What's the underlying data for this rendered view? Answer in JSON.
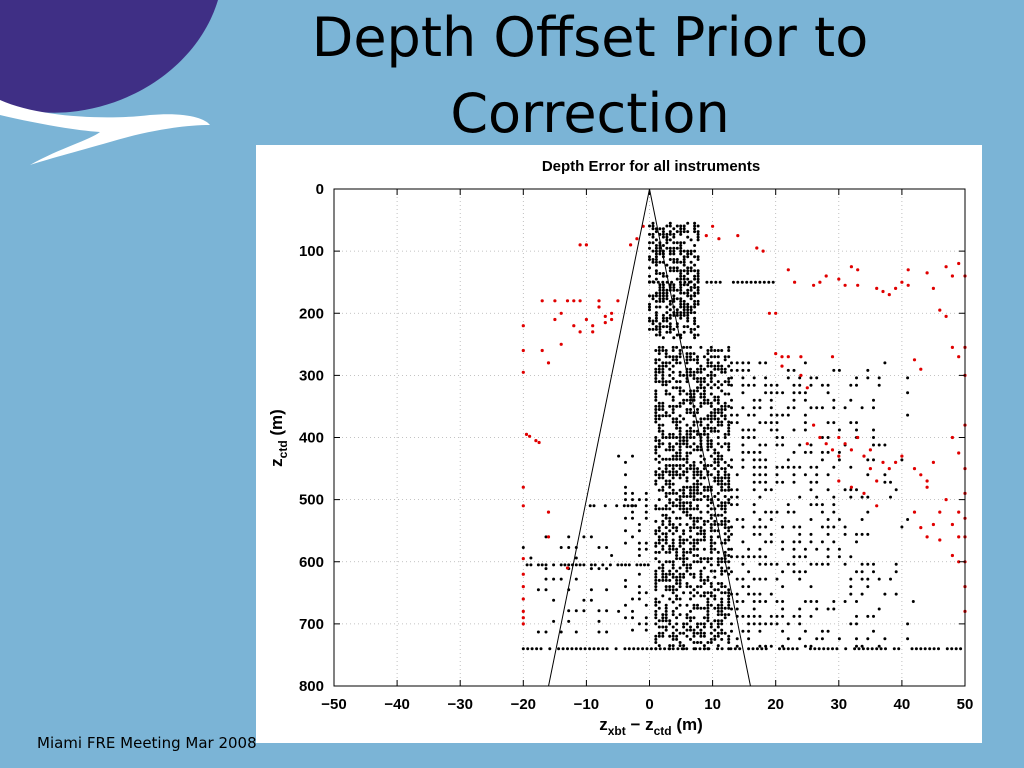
{
  "slide": {
    "title": "Depth Offset Prior to Correction",
    "footer": "Miami FRE Meeting Mar 2008"
  },
  "logo": {
    "name": "wave-logo",
    "colors": {
      "primary": "#3f2f85",
      "secondary": "#ffffff"
    }
  },
  "colors": {
    "background": "#7bb4d6",
    "inlier": "#000000",
    "outlier": "#e00000"
  },
  "chart_data": {
    "type": "scatter",
    "title": "Depth Error for all instruments",
    "xlabel": {
      "main": "z",
      "sub1": "xbt",
      "minus": " − z",
      "sub2": "ctd",
      "unit": " (m)"
    },
    "ylabel": {
      "main": "z",
      "sub": "ctd",
      "unit": " (m)"
    },
    "xlim": [
      -50,
      50
    ],
    "ylim": [
      800,
      0
    ],
    "xticks": [
      "−50",
      "−40",
      "−30",
      "−20",
      "−10",
      "0",
      "10",
      "20",
      "30",
      "40",
      "50"
    ],
    "yticks": [
      "0",
      "100",
      "200",
      "300",
      "400",
      "500",
      "600",
      "700",
      "800"
    ],
    "grid": "dotted",
    "envelope": {
      "apex": [
        0,
        0
      ],
      "bottom_left": [
        -16,
        800
      ],
      "bottom_right": [
        16,
        800
      ]
    },
    "series": [
      {
        "color": "#000000",
        "description": "within tolerance envelope",
        "bands": [
          {
            "y": [
              55,
              240
            ],
            "x": [
              0,
              8
            ],
            "step_x": 0.55,
            "step_y": 4.5
          },
          {
            "y": [
              255,
              740
            ],
            "x": [
              1,
              13
            ],
            "step_x": 0.55,
            "step_y": 5
          },
          {
            "y": [
              430,
              720
            ],
            "x": [
              -6,
              0
            ],
            "step_x": 1.1,
            "step_y": 10
          },
          {
            "y": [
              280,
              740
            ],
            "x": [
              13,
              42
            ],
            "step_x": 0.9,
            "step_y": 12
          },
          {
            "y": [
              560,
              720
            ],
            "x": [
              -20,
              -6
            ],
            "step_x": 1.2,
            "step_y": 17
          }
        ],
        "rows": [
          {
            "y": 740,
            "x": [
              -20,
              50
            ],
            "step_x": 0.7
          },
          {
            "y": 605,
            "x": [
              -20,
              0
            ],
            "step_x": 0.6
          },
          {
            "y": 510,
            "x": [
              -10,
              -2
            ],
            "step_x": 0.6
          },
          {
            "y": 150,
            "x": [
              0,
              20
            ],
            "step_x": 0.7
          }
        ]
      },
      {
        "color": "#e00000",
        "description": "outliers",
        "points": [
          [
            -20,
            220
          ],
          [
            -20,
            260
          ],
          [
            -20,
            295
          ],
          [
            -20,
            480
          ],
          [
            -20,
            510
          ],
          [
            -20,
            595
          ],
          [
            -20,
            620
          ],
          [
            -20,
            640
          ],
          [
            -20,
            660
          ],
          [
            -20,
            680
          ],
          [
            -20,
            690
          ],
          [
            -20,
            700
          ],
          [
            -19.5,
            395
          ],
          [
            -19,
            398
          ],
          [
            -18,
            405
          ],
          [
            -17.5,
            408
          ],
          [
            -17,
            180
          ],
          [
            -17,
            260
          ],
          [
            -16,
            280
          ],
          [
            -16,
            520
          ],
          [
            -16,
            560
          ],
          [
            -15,
            180
          ],
          [
            -15,
            210
          ],
          [
            -14,
            200
          ],
          [
            -14,
            250
          ],
          [
            -13,
            180
          ],
          [
            -13,
            610
          ],
          [
            -12,
            220
          ],
          [
            -12,
            180
          ],
          [
            -11,
            230
          ],
          [
            -11,
            180
          ],
          [
            -11,
            90
          ],
          [
            -10,
            210
          ],
          [
            -10,
            90
          ],
          [
            -9,
            220
          ],
          [
            -9,
            230
          ],
          [
            -8,
            190
          ],
          [
            -8,
            180
          ],
          [
            -7,
            215
          ],
          [
            -7,
            205
          ],
          [
            -6,
            200
          ],
          [
            -6,
            210
          ],
          [
            -5,
            180
          ],
          [
            -3,
            90
          ],
          [
            -2,
            80
          ],
          [
            -1,
            60
          ],
          [
            9,
            75
          ],
          [
            10,
            60
          ],
          [
            11,
            80
          ],
          [
            14,
            75
          ],
          [
            17,
            95
          ],
          [
            18,
            100
          ],
          [
            19,
            200
          ],
          [
            20,
            200
          ],
          [
            20,
            265
          ],
          [
            21,
            270
          ],
          [
            21,
            285
          ],
          [
            22,
            270
          ],
          [
            22,
            130
          ],
          [
            23,
            150
          ],
          [
            24,
            270
          ],
          [
            24,
            300
          ],
          [
            25,
            320
          ],
          [
            26,
            155
          ],
          [
            27,
            150
          ],
          [
            28,
            140
          ],
          [
            29,
            270
          ],
          [
            30,
            145
          ],
          [
            31,
            155
          ],
          [
            32,
            125
          ],
          [
            33,
            130
          ],
          [
            33,
            155
          ],
          [
            34,
            430
          ],
          [
            35,
            420
          ],
          [
            36,
            160
          ],
          [
            37,
            165
          ],
          [
            37,
            440
          ],
          [
            38,
            170
          ],
          [
            39,
            160
          ],
          [
            40,
            150
          ],
          [
            40,
            430
          ],
          [
            41,
            130
          ],
          [
            41,
            155
          ],
          [
            42,
            275
          ],
          [
            42,
            450
          ],
          [
            43,
            290
          ],
          [
            44,
            135
          ],
          [
            44,
            470
          ],
          [
            45,
            160
          ],
          [
            45,
            440
          ],
          [
            46,
            195
          ],
          [
            46,
            565
          ],
          [
            47,
            205
          ],
          [
            47,
            125
          ],
          [
            48,
            140
          ],
          [
            48,
            255
          ],
          [
            48,
            400
          ],
          [
            48,
            590
          ],
          [
            49,
            120
          ],
          [
            49,
            270
          ],
          [
            49,
            425
          ],
          [
            49,
            520
          ],
          [
            49,
            600
          ],
          [
            50,
            140
          ],
          [
            50,
            255
          ],
          [
            50,
            300
          ],
          [
            50,
            380
          ],
          [
            50,
            450
          ],
          [
            50,
            490
          ],
          [
            50,
            530
          ],
          [
            50,
            560
          ],
          [
            50,
            600
          ],
          [
            50,
            640
          ],
          [
            50,
            680
          ],
          [
            30,
            400
          ],
          [
            31,
            410
          ],
          [
            32,
            420
          ],
          [
            33,
            400
          ],
          [
            27,
            400
          ],
          [
            28,
            410
          ],
          [
            26,
            380
          ],
          [
            25,
            410
          ],
          [
            29,
            420
          ],
          [
            30,
            430
          ],
          [
            35,
            450
          ],
          [
            36,
            470
          ],
          [
            38,
            450
          ],
          [
            39,
            440
          ],
          [
            43,
            460
          ],
          [
            44,
            480
          ],
          [
            42,
            520
          ],
          [
            43,
            545
          ],
          [
            44,
            560
          ],
          [
            45,
            540
          ],
          [
            46,
            520
          ],
          [
            47,
            500
          ],
          [
            48,
            540
          ],
          [
            49,
            560
          ],
          [
            30,
            470
          ],
          [
            32,
            480
          ],
          [
            34,
            490
          ],
          [
            36,
            510
          ]
        ]
      }
    ]
  }
}
